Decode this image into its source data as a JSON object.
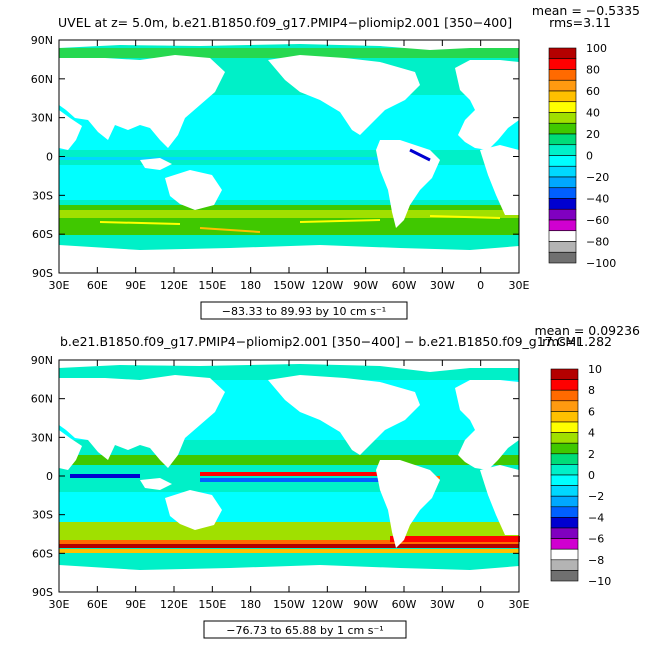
{
  "panels": [
    {
      "title": "UVEL at z=    5.0m, b.e21.B1850.f09_g17.PMIP4−pliomip2.001 [350−400]",
      "mean": "mean = −0.5335",
      "rms": "rms=3.11",
      "range": "−83.33 to 89.93 by 10 cm s⁻¹",
      "colorbar_labels": [
        "100",
        "80",
        "60",
        "40",
        "20",
        "0",
        "−20",
        "−40",
        "−60",
        "−80",
        "−100"
      ],
      "colorbar_colors": [
        "#b40000",
        "#ff0000",
        "#ff6a00",
        "#ff9a10",
        "#ffc000",
        "#ffff00",
        "#a0e000",
        "#40c800",
        "#00dc78",
        "#00f0c8",
        "#00ffff",
        "#00d8ff",
        "#00a8ff",
        "#0060ff",
        "#0000d0",
        "#8000c0",
        "#d000d0",
        "#ffffff",
        "#b4b4b4",
        "#707070"
      ]
    },
    {
      "title": "b.e21.B1850.f09_g17.PMIP4−pliomip2.001 [350−400] − b.e21.B1850.f09_g17.CMI",
      "mean": "mean = 0.09236",
      "rms": "rms=1.282",
      "range": "−76.73 to 65.88 by 1 cm s⁻¹",
      "colorbar_labels": [
        "10",
        "8",
        "6",
        "4",
        "2",
        "0",
        "−2",
        "−4",
        "−6",
        "−8",
        "−10"
      ],
      "colorbar_colors": [
        "#b40000",
        "#ff0000",
        "#ff6a00",
        "#ff9a10",
        "#ffc000",
        "#ffff00",
        "#a0e000",
        "#40c800",
        "#00dc78",
        "#00f0c8",
        "#00ffff",
        "#00d8ff",
        "#00a8ff",
        "#0060ff",
        "#0000d0",
        "#8000c0",
        "#d000d0",
        "#ffffff",
        "#b4b4b4",
        "#707070"
      ]
    }
  ],
  "lat_labels": [
    "90N",
    "60N",
    "30N",
    "0",
    "30S",
    "60S",
    "90S"
  ],
  "lon_labels": [
    "30E",
    "60E",
    "90E",
    "120E",
    "150E",
    "180",
    "150W",
    "120W",
    "90W",
    "60W",
    "30W",
    "0",
    "30E"
  ]
}
